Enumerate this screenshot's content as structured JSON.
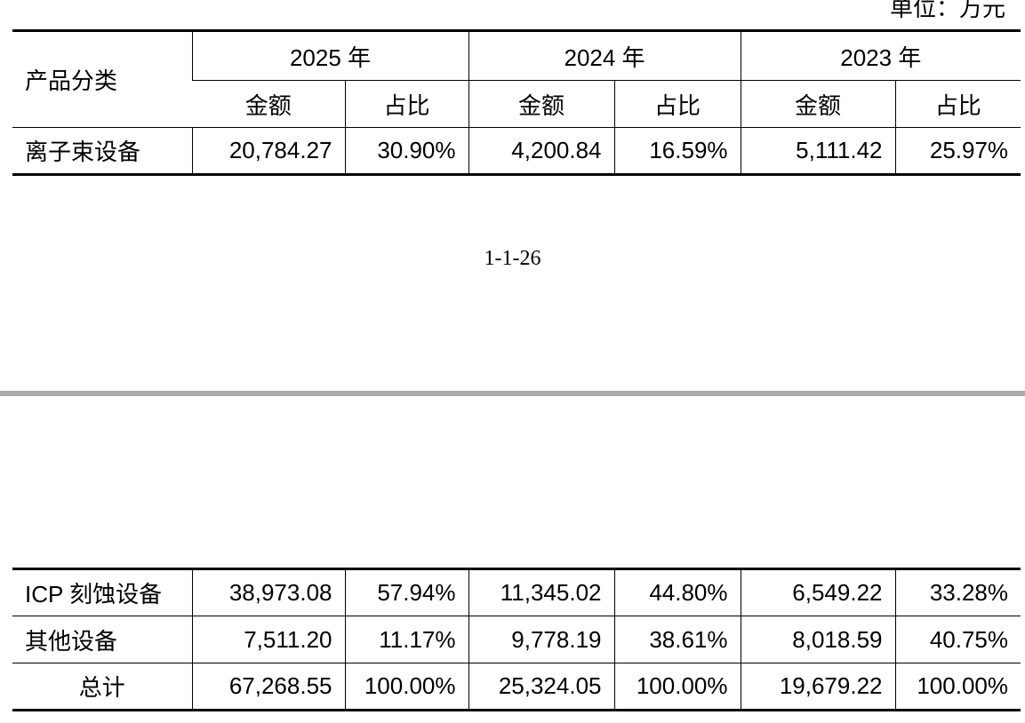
{
  "unit_label": "单位：万元",
  "header": {
    "category_label": "产品分类",
    "years": [
      "2025 年",
      "2024 年",
      "2023 年"
    ],
    "amount_label": "金额",
    "ratio_label": "占比"
  },
  "top_rows": [
    {
      "category": "离子束设备",
      "values": [
        "20,784.27",
        "30.90%",
        "4,200.84",
        "16.59%",
        "5,111.42",
        "25.97%"
      ]
    }
  ],
  "page_number": "1-1-26",
  "bottom_rows": [
    {
      "category": "ICP 刻蚀设备",
      "values": [
        "38,973.08",
        "57.94%",
        "11,345.02",
        "44.80%",
        "6,549.22",
        "33.28%"
      ]
    },
    {
      "category": "其他设备",
      "values": [
        "7,511.20",
        "11.17%",
        "9,778.19",
        "38.61%",
        "8,018.59",
        "40.75%"
      ]
    }
  ],
  "total_row": {
    "category": "总计",
    "values": [
      "67,268.55",
      "100.00%",
      "25,324.05",
      "100.00%",
      "19,679.22",
      "100.00%"
    ]
  }
}
